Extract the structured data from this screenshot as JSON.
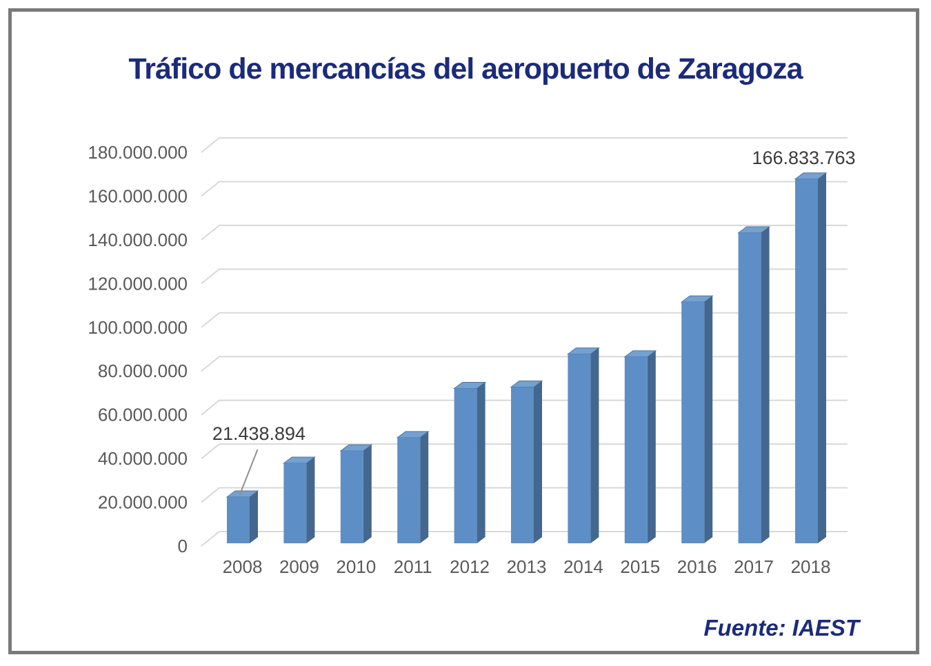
{
  "window": {
    "background": "#ffffff",
    "frame_border_color": "#7a7a7a"
  },
  "title": {
    "text": "Tráfico de mercancías del aeropuerto de Zaragoza",
    "color": "#1b2b7c"
  },
  "source": {
    "text": "Fuente: IAEST",
    "color": "#1b2b7c"
  },
  "chart_data": {
    "type": "bar",
    "variant": "3d-column",
    "title": "Tráfico de mercancías del aeropuerto de Zaragoza",
    "categories": [
      "2008",
      "2009",
      "2010",
      "2011",
      "2012",
      "2013",
      "2014",
      "2015",
      "2016",
      "2017",
      "2018"
    ],
    "series": [
      {
        "name": "Tráfico de mercancías",
        "values": [
          21438894,
          36900000,
          42500000,
          48600000,
          71100000,
          71700000,
          86800000,
          85500000,
          110600000,
          142200000,
          166833763
        ]
      }
    ],
    "values_note": "only 2008 and 2018 are labeled in the chart; other values estimated from gridlines",
    "data_labels": [
      {
        "category": "2008",
        "text": "21.438.894",
        "position": "callout-left"
      },
      {
        "category": "2018",
        "text": "166.833.763",
        "position": "above"
      }
    ],
    "ylim": [
      0,
      180000000
    ],
    "ytick_step": 20000000,
    "yticks": [
      {
        "value": 0,
        "label": "0"
      },
      {
        "value": 20000000,
        "label": "20.000.000"
      },
      {
        "value": 40000000,
        "label": "40.000.000"
      },
      {
        "value": 60000000,
        "label": "60.000.000"
      },
      {
        "value": 80000000,
        "label": "80.000.000"
      },
      {
        "value": 100000000,
        "label": "100.000.000"
      },
      {
        "value": 120000000,
        "label": "120.000.000"
      },
      {
        "value": 140000000,
        "label": "140.000.000"
      },
      {
        "value": 160000000,
        "label": "160.000.000"
      },
      {
        "value": 180000000,
        "label": "180.000.000"
      }
    ],
    "xlabel": "",
    "ylabel": "",
    "legend": "none",
    "grid": true,
    "colors": {
      "bar_front": "#5d8ec6",
      "bar_side": "#44678f",
      "bar_top": "#74a1d0",
      "bar_top_edge": "#4e749f",
      "gridline": "#d8d8d8",
      "axis_text": "#595959",
      "data_label_text": "#3b3b3b",
      "leader_line": "#8f8f8f"
    }
  }
}
